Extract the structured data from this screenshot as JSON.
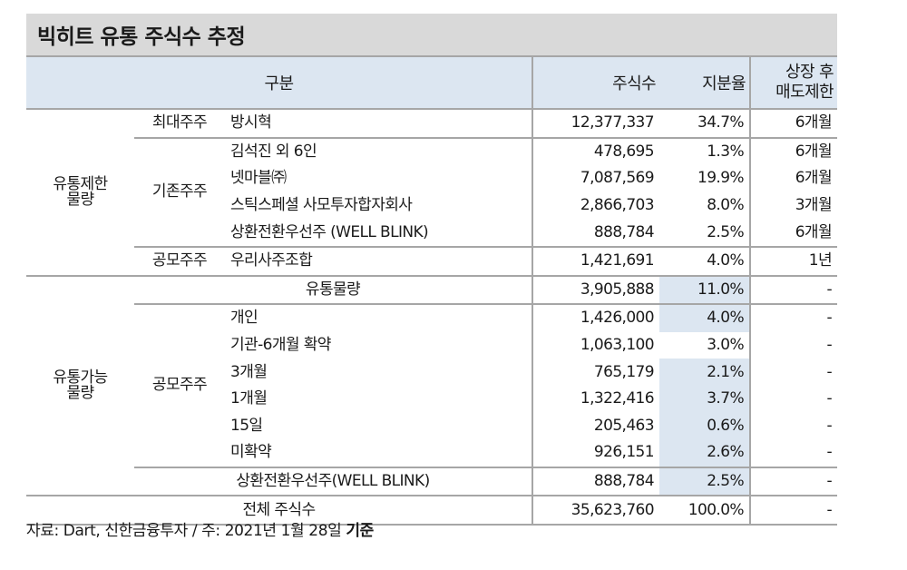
{
  "title": "빅히트 유통 주식수 추정",
  "header": {
    "category": "구분",
    "shares": "주식수",
    "stake": "지분율",
    "lockup_line1": "상장 후",
    "lockup_line2": "매도제한"
  },
  "groups": {
    "restricted": {
      "line1": "유통제한",
      "line2": "물량"
    },
    "tradable": {
      "line1": "유통가능",
      "line2": "물량"
    }
  },
  "rows": [
    {
      "group": "유통제한 물량",
      "sub": "최대주주",
      "name": "방시혁",
      "shares": "12,377,337",
      "stake": "34.7%",
      "lockup": "6개월"
    },
    {
      "group": "유통제한 물량",
      "sub": "기존주주",
      "name": "김석진 외 6인",
      "shares": "478,695",
      "stake": "1.3%",
      "lockup": "6개월"
    },
    {
      "group": "유통제한 물량",
      "sub": "기존주주",
      "name": "넷마블㈜",
      "shares": "7,087,569",
      "stake": "19.9%",
      "lockup": "6개월"
    },
    {
      "group": "유통제한 물량",
      "sub": "기존주주",
      "name": "스틱스페셜 사모투자합자회사",
      "shares": "2,866,703",
      "stake": "8.0%",
      "lockup": "3개월"
    },
    {
      "group": "유통제한 물량",
      "sub": "기존주주",
      "name": "상환전환우선주 (WELL BLINK)",
      "shares": "888,784",
      "stake": "2.5%",
      "lockup": "6개월"
    },
    {
      "group": "유통제한 물량",
      "sub": "공모주주",
      "name": "우리사주조합",
      "shares": "1,421,691",
      "stake": "4.0%",
      "lockup": "1년"
    },
    {
      "group": "유통가능 물량",
      "sub": "",
      "name": "유통물량",
      "shares": "3,905,888",
      "stake": "11.0%",
      "lockup": "-"
    },
    {
      "group": "유통가능 물량",
      "sub": "공모주주",
      "name": "개인",
      "shares": "1,426,000",
      "stake": "4.0%",
      "lockup": "-"
    },
    {
      "group": "유통가능 물량",
      "sub": "공모주주",
      "name": "기관-6개월 확약",
      "shares": "1,063,100",
      "stake": "3.0%",
      "lockup": "-"
    },
    {
      "group": "유통가능 물량",
      "sub": "공모주주",
      "name": "3개월",
      "shares": "765,179",
      "stake": "2.1%",
      "lockup": "-"
    },
    {
      "group": "유통가능 물량",
      "sub": "공모주주",
      "name": "1개월",
      "shares": "1,322,416",
      "stake": "3.7%",
      "lockup": "-"
    },
    {
      "group": "유통가능 물량",
      "sub": "공모주주",
      "name": "15일",
      "shares": "205,463",
      "stake": "0.6%",
      "lockup": "-"
    },
    {
      "group": "유통가능 물량",
      "sub": "공모주주",
      "name": "미확약",
      "shares": "926,151",
      "stake": "2.6%",
      "lockup": "-"
    },
    {
      "group": "유통가능 물량",
      "sub": "",
      "name": "상환전환우선주(WELL BLINK)",
      "shares": "888,784",
      "stake": "2.5%",
      "lockup": "-"
    },
    {
      "group": "",
      "sub": "",
      "name": "전체 주식수",
      "shares": "35,623,760",
      "stake": "100.0%",
      "lockup": "-"
    }
  ],
  "subs": {
    "largest": "최대주주",
    "existing": "기존주주",
    "ipo_restricted": "공모주주",
    "ipo_tradable": "공모주주"
  },
  "footer": {
    "source": "자료: Dart, 신한금융투자 / 주: 2021년 1월 28일 ",
    "basis": "기준"
  },
  "colors": {
    "title_bg": "#d9d9d9",
    "header_bg": "#dce6f1",
    "highlight_bg": "#dce6f1",
    "rule": "#a6a6a6"
  }
}
